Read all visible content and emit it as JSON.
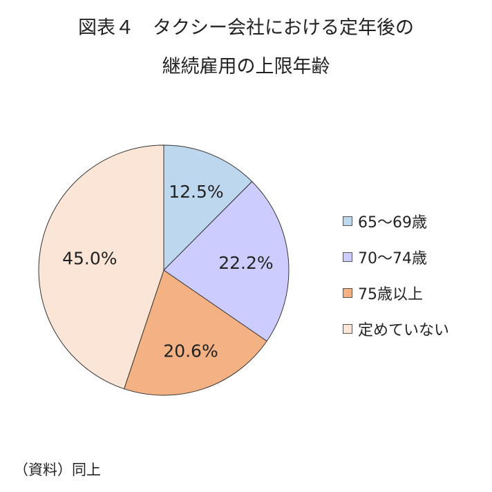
{
  "title": {
    "line1": "図表４　タクシー会社における定年後の",
    "line2": "継続雇用の上限年齢"
  },
  "source": "（資料）同上",
  "chart_data": {
    "type": "pie",
    "title": "図表４　タクシー会社における定年後の継続雇用の上限年齢",
    "categories": [
      "65～69歳",
      "70～74歳",
      "75歳以上",
      "定めていない"
    ],
    "values": [
      12.5,
      22.2,
      20.6,
      45.0
    ],
    "labels": [
      "12.5%",
      "22.2%",
      "20.6%",
      "45.0%"
    ],
    "colors": [
      "#bdd7ee",
      "#ccccff",
      "#f4b183",
      "#fbe5d6"
    ],
    "start_angle": "12 o'clock, clockwise",
    "legend_position": "right"
  }
}
